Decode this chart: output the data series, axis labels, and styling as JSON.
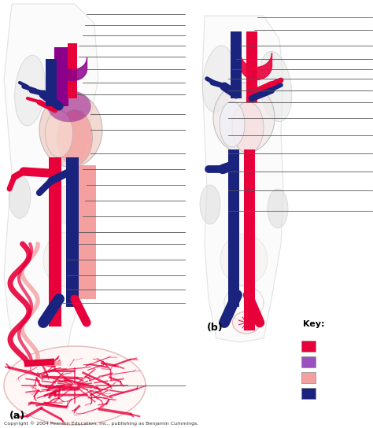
{
  "figsize": [
    4.74,
    5.44
  ],
  "dpi": 100,
  "bg_color": "#ffffff",
  "label_a": "(a)",
  "label_b": "(b)",
  "copyright": "Copyright © 2004 Pearson Education, Inc., publishing as Benjamin Cummings.",
  "key_title": "Key:",
  "key_colors": [
    "#e8003a",
    "#9b50c0",
    "#f4a0a0",
    "#1a237e"
  ],
  "red": "#cc0000",
  "dark_red": "#e8003a",
  "blue": "#1a237e",
  "purple": "#8b008b",
  "pink": "#f4a0a0",
  "line_color": "#555555",
  "body_outline": "#c8c8c8",
  "body_fill": "#f8f8f8",
  "lung_fill": "#e8e8e8",
  "kidney_fill": "#e0e0e0"
}
